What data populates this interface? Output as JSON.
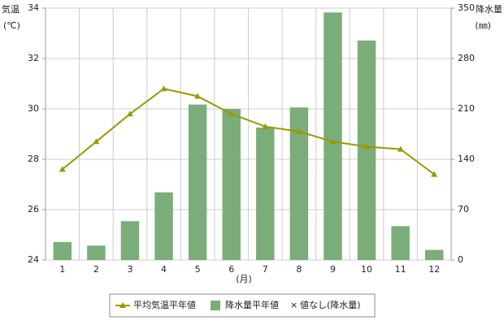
{
  "chart_data": {
    "type": "combo",
    "y_label": [
      "気温",
      "(℃)"
    ],
    "y2_label": [
      "降水量",
      "(㎜)"
    ],
    "x_label": "(月)",
    "categories": [
      "1",
      "2",
      "3",
      "4",
      "5",
      "6",
      "7",
      "8",
      "9",
      "10",
      "11",
      "12"
    ],
    "series": [
      {
        "name": "平均気温平年値",
        "type": "line",
        "color": "#999900",
        "values": [
          27.6,
          28.7,
          29.8,
          30.8,
          30.5,
          29.8,
          29.3,
          29.1,
          28.7,
          28.5,
          28.4,
          27.4
        ]
      },
      {
        "name": "降水量平年値",
        "type": "bar",
        "axis": "y2",
        "color": "#7aad7a",
        "values": [
          25,
          20,
          54,
          94,
          216,
          210,
          184,
          212,
          344,
          305,
          47,
          14
        ]
      }
    ],
    "no_data_marker": "×",
    "no_data_legend": "値なし(降水量)",
    "ylim": [
      24,
      34
    ],
    "yticks": [
      24,
      26,
      28,
      30,
      32,
      34
    ],
    "y2lim": [
      0,
      350
    ],
    "y2ticks": [
      0,
      70,
      140,
      210,
      280,
      350
    ],
    "grid": true
  }
}
